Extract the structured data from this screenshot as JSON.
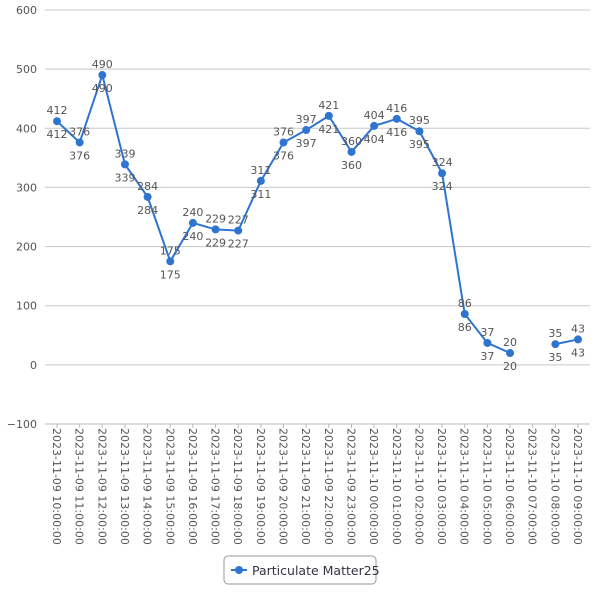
{
  "chart_data": {
    "type": "line",
    "title": "",
    "xlabel": "",
    "ylabel": "",
    "ylim": [
      -100,
      600
    ],
    "yticks": [
      -100,
      0,
      100,
      200,
      300,
      400,
      500,
      600
    ],
    "grid": true,
    "legend_position": "bottom",
    "categories": [
      "2023-11-09 10:00:00",
      "2023-11-09 11:00:00",
      "2023-11-09 12:00:00",
      "2023-11-09 13:00:00",
      "2023-11-09 14:00:00",
      "2023-11-09 15:00:00",
      "2023-11-09 16:00:00",
      "2023-11-09 17:00:00",
      "2023-11-09 18:00:00",
      "2023-11-09 19:00:00",
      "2023-11-09 20:00:00",
      "2023-11-09 21:00:00",
      "2023-11-09 22:00:00",
      "2023-11-09 23:00:00",
      "2023-11-10 00:00:00",
      "2023-11-10 01:00:00",
      "2023-11-10 02:00:00",
      "2023-11-10 03:00:00",
      "2023-11-10 04:00:00",
      "2023-11-10 05:00:00",
      "2023-11-10 06:00:00",
      "2023-11-10 07:00:00",
      "2023-11-10 08:00:00",
      "2023-11-10 09:00:00"
    ],
    "series": [
      {
        "name": "Particulate Matter25",
        "color": "#2f74d0",
        "values": [
          412,
          376,
          490,
          339,
          284,
          175,
          240,
          229,
          227,
          311,
          376,
          397,
          421,
          360,
          404,
          416,
          395,
          324,
          86,
          37,
          20,
          null,
          35,
          43
        ]
      }
    ]
  }
}
